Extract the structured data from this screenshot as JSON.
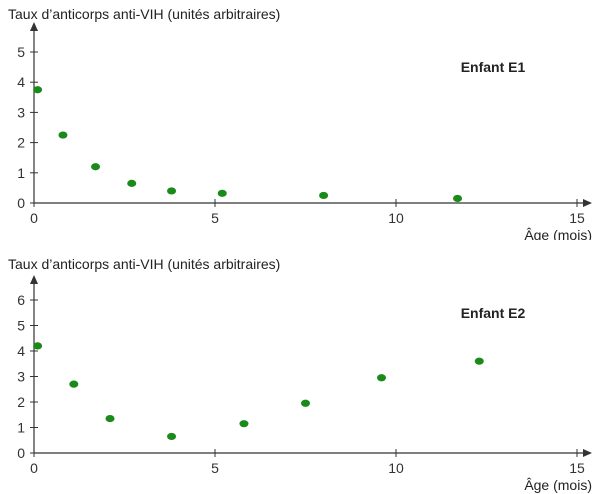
{
  "chart_data": [
    {
      "type": "scatter",
      "title": "Enfant E1",
      "ylabel": "Taux d’anticorps anti-VIH (unités arbitraires)",
      "xlabel": "Âge (mois)",
      "xlim": [
        0,
        15
      ],
      "ylim": [
        0,
        5
      ],
      "xticks": [
        0,
        5,
        10,
        15
      ],
      "yticks": [
        0,
        1,
        2,
        3,
        4,
        5
      ],
      "grid": false,
      "marker_color": "#1a8a1a",
      "x": [
        0.1,
        0.8,
        1.7,
        2.7,
        3.8,
        5.2,
        8.0,
        11.7
      ],
      "y": [
        3.75,
        2.25,
        1.2,
        0.65,
        0.4,
        0.32,
        0.25,
        0.15
      ]
    },
    {
      "type": "scatter",
      "title": "Enfant E2",
      "ylabel": "Taux d’anticorps anti-VIH (unités arbitraires)",
      "xlabel": "Âge (mois)",
      "xlim": [
        0,
        15
      ],
      "ylim": [
        0,
        6
      ],
      "xticks": [
        0,
        5,
        10,
        15
      ],
      "yticks": [
        0,
        1,
        2,
        3,
        4,
        5,
        6
      ],
      "grid": false,
      "marker_color": "#1a8a1a",
      "x": [
        0.1,
        1.1,
        2.1,
        3.8,
        5.8,
        7.5,
        9.6,
        12.3
      ],
      "y": [
        4.2,
        2.7,
        1.35,
        0.65,
        1.15,
        1.95,
        2.95,
        3.6
      ]
    }
  ]
}
